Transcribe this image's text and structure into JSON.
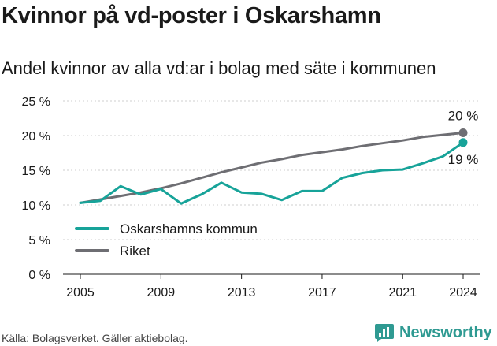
{
  "title": "Kvinnor på vd-poster i Oskarshamn",
  "subtitle": "Andel kvinnor av alla vd:ar i bolag med säte i kommunen",
  "source": "Källa: Bolagsverket. Gäller aktiebolag.",
  "brand": "Newsworthy",
  "colors": {
    "kommun": "#17a399",
    "riket": "#6e6e73",
    "grid": "#cfcfcf"
  },
  "chart_data": {
    "type": "line",
    "x": [
      2005,
      2006,
      2007,
      2008,
      2009,
      2010,
      2011,
      2012,
      2013,
      2014,
      2015,
      2016,
      2017,
      2018,
      2019,
      2020,
      2021,
      2022,
      2023,
      2024
    ],
    "series": [
      {
        "name": "Oskarshamns kommun",
        "values": [
          10.3,
          10.6,
          12.7,
          11.5,
          12.3,
          10.2,
          11.5,
          13.2,
          11.8,
          11.6,
          10.7,
          12.0,
          12.0,
          13.9,
          14.6,
          15.0,
          15.1,
          16.0,
          17.0,
          19.0
        ]
      },
      {
        "name": "Riket",
        "values": [
          10.3,
          10.8,
          11.3,
          11.8,
          12.4,
          13.1,
          13.9,
          14.7,
          15.4,
          16.1,
          16.6,
          17.2,
          17.6,
          18.0,
          18.5,
          18.9,
          19.3,
          19.8,
          20.1,
          20.4
        ]
      }
    ],
    "x_ticks": [
      "2005",
      "2009",
      "2013",
      "2017",
      "2021",
      "2024"
    ],
    "y_ticks": [
      "0 %",
      "5 %",
      "10 %",
      "15 %",
      "20 %",
      "25 %"
    ],
    "ylim": [
      0,
      25
    ],
    "end_labels": {
      "riket": "20 %",
      "kommun": "19 %"
    },
    "grid": true,
    "legend_position": "bottom-left"
  }
}
